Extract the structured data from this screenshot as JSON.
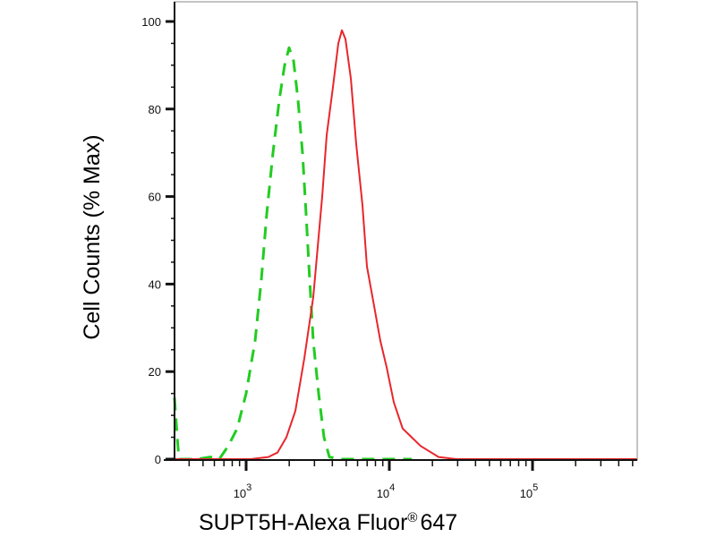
{
  "chart_data": {
    "type": "line",
    "title": "",
    "xlabel": "SUPT5H-Alexa Fluor",
    "xlabel_mark": "®",
    "xlabel_suffix": "647",
    "ylabel": "Cell Counts (% Max)",
    "x_scale": "log",
    "xlim": [
      316,
      550000
    ],
    "ylim": [
      0,
      100
    ],
    "grid": false,
    "legend": "none",
    "x_ticks": [
      {
        "value": 1000,
        "base": "10",
        "exp": "3"
      },
      {
        "value": 10000,
        "base": "10",
        "exp": "4"
      },
      {
        "value": 100000,
        "base": "10",
        "exp": "5"
      }
    ],
    "y_ticks": [
      "0",
      "20",
      "40",
      "60",
      "80",
      "100"
    ],
    "series": [
      {
        "color": "#22cc22",
        "style": "dashed",
        "x": [
          316,
          330,
          340,
          453,
          562,
          649,
          750,
          866,
          1000,
          1155,
          1277,
          1393,
          1540,
          1703,
          1857,
          1995,
          2143,
          2305,
          2477,
          2624,
          2780,
          2943,
          3206,
          3498,
          3813,
          4530,
          14330
        ],
        "y": [
          14,
          5,
          0,
          0,
          0.5,
          0,
          3,
          7,
          15,
          27,
          41,
          56,
          70,
          82,
          90,
          94,
          91,
          82,
          70,
          56,
          41,
          27,
          15,
          5,
          0.5,
          0,
          0
        ]
      },
      {
        "color": "#e8262b",
        "style": "solid",
        "x": [
          316,
          1075,
          1430,
          1655,
          1910,
          2207,
          2549,
          2943,
          3398,
          3652,
          4037,
          4404,
          4667,
          4943,
          5385,
          5869,
          6494,
          6980,
          7830,
          8660,
          9580,
          10750,
          12400,
          14330,
          16550,
          22070,
          29400,
          550000
        ],
        "y": [
          0,
          0,
          0.5,
          1.5,
          5,
          11,
          23,
          37,
          60,
          74,
          85,
          95,
          98,
          96,
          87,
          72,
          58,
          44,
          35,
          27,
          21,
          13,
          7,
          5,
          3,
          0.5,
          0,
          0
        ]
      }
    ]
  }
}
